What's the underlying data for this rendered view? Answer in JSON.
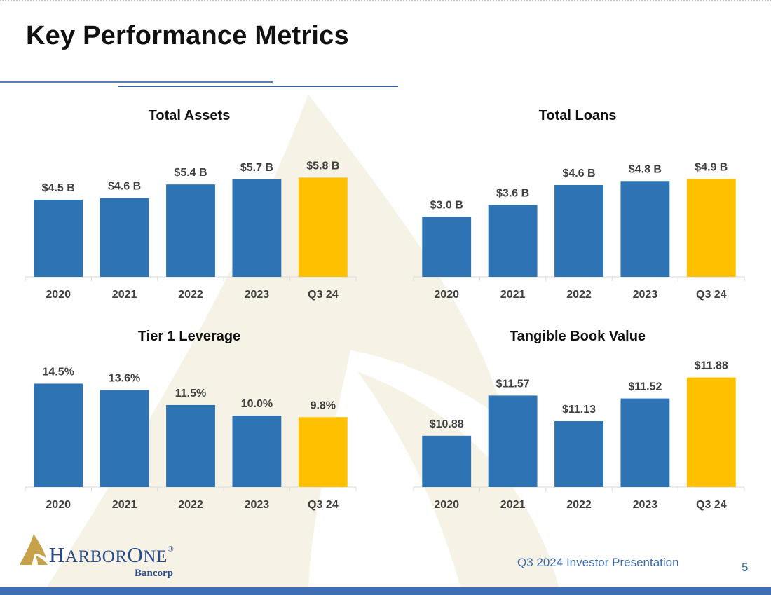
{
  "page": {
    "title": "Key Performance Metrics",
    "footer": "Q3 2024 Investor Presentation",
    "page_number": "5"
  },
  "logo": {
    "name_part1": "H",
    "name_part2": "ARBOR",
    "name_part3": "O",
    "name_part4": "NE",
    "registered": "®",
    "subtitle": "Bancorp"
  },
  "colors": {
    "bar_blue": "#2e74b5",
    "bar_highlight": "#ffc000",
    "axis": "#d9d9d9",
    "text": "#404040",
    "title": "#111111",
    "accent_blue": "#3e6fb4"
  },
  "chart_data": [
    {
      "id": "total-assets",
      "type": "bar",
      "title": "Total Assets",
      "categories": [
        "2020",
        "2021",
        "2022",
        "2023",
        "Q3 24"
      ],
      "values": [
        4.5,
        4.6,
        5.4,
        5.7,
        5.8
      ],
      "labels": [
        "$4.5 B",
        "$4.6 B",
        "$5.4 B",
        "$5.7 B",
        "$5.8 B"
      ],
      "highlight_index": 4,
      "ylim": [
        0,
        7.7
      ]
    },
    {
      "id": "total-loans",
      "type": "bar",
      "title": "Total Loans",
      "categories": [
        "2020",
        "2021",
        "2022",
        "2023",
        "Q3 24"
      ],
      "values": [
        3.0,
        3.6,
        4.6,
        4.8,
        4.9
      ],
      "labels": [
        "$3.0 B",
        "$3.6 B",
        "$4.6 B",
        "$4.8 B",
        "$4.9 B"
      ],
      "highlight_index": 4,
      "ylim": [
        0,
        6.6
      ]
    },
    {
      "id": "tier-1-leverage",
      "type": "bar",
      "title": "Tier 1 Leverage",
      "categories": [
        "2020",
        "2021",
        "2022",
        "2023",
        "Q3 24"
      ],
      "values": [
        14.5,
        13.6,
        11.5,
        10.0,
        9.8
      ],
      "labels": [
        "14.5%",
        "13.6%",
        "11.5%",
        "10.0%",
        "9.8%"
      ],
      "highlight_index": 4,
      "ylim": [
        0,
        17.0
      ]
    },
    {
      "id": "tangible-book-value",
      "type": "bar",
      "title": "Tangible Book Value",
      "categories": [
        "2020",
        "2021",
        "2022",
        "2023",
        "Q3 24"
      ],
      "values": [
        10.88,
        11.57,
        11.13,
        11.52,
        11.88
      ],
      "labels": [
        "$10.88",
        "$11.57",
        "$11.13",
        "$11.52",
        "$11.88"
      ],
      "highlight_index": 4,
      "ylim": [
        10.0,
        12.08
      ]
    }
  ]
}
